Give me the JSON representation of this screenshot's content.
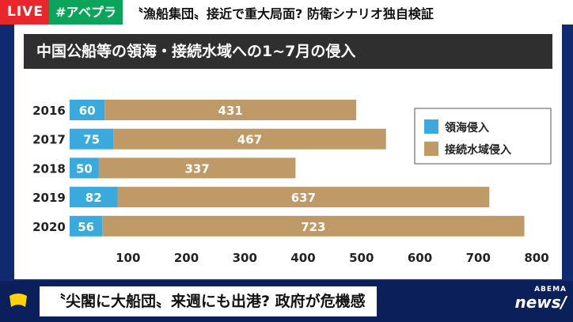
{
  "header": {
    "live_label": "LIVE",
    "tag_label": "#アベプラ",
    "headline": "〝漁船集団〟接近で重大局面? 防衛シナリオ独自検証"
  },
  "lower_third": {
    "headline": "〝尖閣に大船団〟来週にも出港? 政府が危機感",
    "logo_top": "ABEMA",
    "logo_bottom": "news/"
  },
  "chart_data": {
    "type": "bar",
    "orientation": "horizontal",
    "stacked": true,
    "title": "中国公船等の領海・接続水域への1~7月の侵入",
    "categories": [
      "2016",
      "2017",
      "2018",
      "2019",
      "2020"
    ],
    "series": [
      {
        "name": "領海侵入",
        "values": [
          60,
          75,
          50,
          82,
          56
        ],
        "color": "#3aa9dd"
      },
      {
        "name": "接続水域侵入",
        "values": [
          431,
          467,
          337,
          637,
          723
        ],
        "color": "#c09a66"
      }
    ],
    "xlim": [
      0,
      800
    ],
    "xticks": [
      100,
      200,
      300,
      400,
      500,
      600,
      700,
      800
    ],
    "legend_position": "right",
    "grid": false
  }
}
